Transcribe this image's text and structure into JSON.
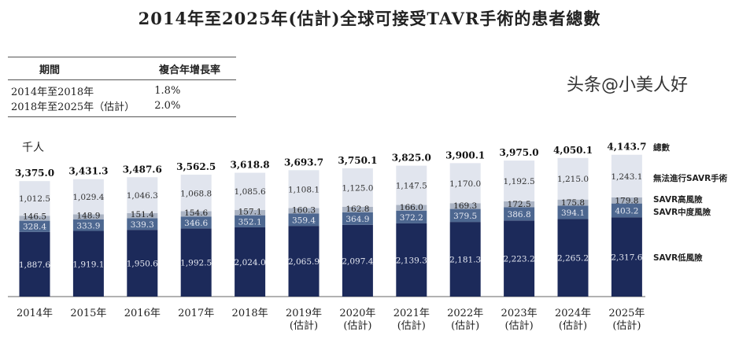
{
  "title": "2014年至2025年(估計)全球可接受TAVR手術的患者總數",
  "cagr_table": {
    "headers": [
      "期間",
      "複合年增長率"
    ],
    "rows": [
      [
        "2014年至2018年",
        "1.8%"
      ],
      [
        "2018年至2025年（估計）",
        "2.0%"
      ]
    ]
  },
  "watermark": "头条@小美人好",
  "chart_data": {
    "type": "bar",
    "stacked": true,
    "unit_label": "千人",
    "categories": [
      [
        "2014年",
        ""
      ],
      [
        "2015年",
        ""
      ],
      [
        "2016年",
        ""
      ],
      [
        "2017年",
        ""
      ],
      [
        "2018年",
        ""
      ],
      [
        "2019年",
        "(估計)"
      ],
      [
        "2020年",
        "(估計)"
      ],
      [
        "2021年",
        "(估計)"
      ],
      [
        "2022年",
        "(估計)"
      ],
      [
        "2023年",
        "(估計)"
      ],
      [
        "2024年",
        "(估計)"
      ],
      [
        "2025年",
        "(估計)"
      ]
    ],
    "series": [
      {
        "name": "SAVR低風險",
        "color": "#1c2a5a",
        "label_color": "#e6e9f2",
        "values": [
          "1,887.6",
          "1,919.1",
          "1,950.6",
          "1,992.5",
          "2,024.0",
          "2,065.9",
          "2,097.4",
          "2,139.3",
          "2,181.3",
          "2,223.2",
          "2,265.2",
          "2,317.6"
        ]
      },
      {
        "name": "SAVR中度風險",
        "color": "#4d6790",
        "label_color": "#e6e9f2",
        "values": [
          "328.4",
          "333.9",
          "339.3",
          "346.6",
          "352.1",
          "359.4",
          "364.9",
          "372.2",
          "379.5",
          "386.8",
          "394.1",
          "403.2"
        ]
      },
      {
        "name": "SAVR高風險",
        "color": "#aab3c3",
        "label_color": "#222",
        "values": [
          "146.5",
          "148.9",
          "151.4",
          "154.6",
          "157.1",
          "160.3",
          "162.8",
          "166.0",
          "169.3",
          "172.5",
          "175.8",
          "179.8"
        ]
      },
      {
        "name": "無法進行SAVR手術",
        "color": "#e1e5ee",
        "label_color": "#333",
        "values": [
          "1,012.5",
          "1,029.4",
          "1,046.3",
          "1,068.8",
          "1,085.6",
          "1,108.1",
          "1,125.0",
          "1,147.5",
          "1,170.0",
          "1,192.5",
          "1,215.0",
          "1,243.1"
        ]
      }
    ],
    "totals_label": "總數",
    "totals": [
      "3,375.0",
      "3,431.3",
      "3,487.6",
      "3,562.5",
      "3,618.8",
      "3,693.7",
      "3,750.1",
      "3,825.0",
      "3,900.1",
      "3,975.0",
      "4,050.1",
      "4,143.7"
    ]
  }
}
